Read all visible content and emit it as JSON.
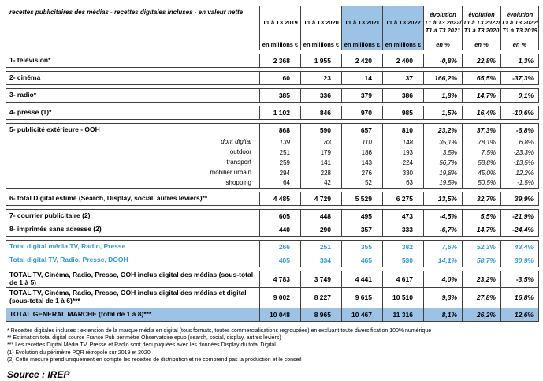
{
  "colors": {
    "highlight_blue": "#9cc3e5",
    "blue_text": "#2e9ad6",
    "border": "#3f3f3f"
  },
  "chart_data": {
    "type": "table",
    "title": "recettes publicitaires des médias - recettes digitales incluses - en valeur nette",
    "column_headers": [
      "T1 à T3 2019",
      "T1 à T3 2020",
      "T1 à T3 2021",
      "T1 à T3 2022",
      "évolution\nT1 à T3 2022/\nT1 à T3 2021",
      "évolution\nT1 à T3 2022/\nT1 à T3 2020",
      "évolution\nT1 à T3 2022/\nT1 à T3 2019"
    ],
    "column_subheaders": [
      "en millions €",
      "en millions €",
      "en millions €",
      "en millions €",
      "en %",
      "en %",
      "en %"
    ],
    "highlighted_columns": [
      2,
      3
    ],
    "sections": [
      {
        "rows": [
          {
            "label": "1- télévision*",
            "type": "main",
            "values": [
              "2 368",
              "1 955",
              "2 420",
              "2 400",
              "-0,8%",
              "22,8%",
              "1,3%"
            ]
          }
        ]
      },
      {
        "rows": [
          {
            "label": "2- cinéma",
            "type": "main",
            "values": [
              "60",
              "23",
              "14",
              "37",
              "166,2%",
              "65,5%",
              "-37,3%"
            ]
          }
        ]
      },
      {
        "rows": [
          {
            "label": "3- radio*",
            "type": "main",
            "values": [
              "385",
              "336",
              "379",
              "386",
              "1,8%",
              "14,7%",
              "0,1%"
            ]
          }
        ]
      },
      {
        "rows": [
          {
            "label": "4- presse (1)*",
            "type": "main",
            "values": [
              "1 102",
              "846",
              "970",
              "985",
              "1,5%",
              "16,4%",
              "-10,6%"
            ]
          }
        ]
      },
      {
        "rows": [
          {
            "label": "5- publicité extérieure - OOH",
            "type": "main",
            "values": [
              "868",
              "590",
              "657",
              "810",
              "23,2%",
              "37,3%",
              "-6,8%"
            ]
          },
          {
            "label": "dont digital",
            "type": "subi",
            "values": [
              "139",
              "83",
              "110",
              "148",
              "35,1%",
              "78,1%",
              "6,8%"
            ]
          },
          {
            "label": "outdoor",
            "type": "sub",
            "values": [
              "251",
              "179",
              "186",
              "193",
              "3,5%",
              "7,5%",
              "-23,3%"
            ]
          },
          {
            "label": "transport",
            "type": "sub",
            "values": [
              "259",
              "141",
              "143",
              "224",
              "56,7%",
              "58,8%",
              "-13,5%"
            ]
          },
          {
            "label": "mobilier urbain",
            "type": "sub",
            "values": [
              "294",
              "228",
              "276",
              "330",
              "19,8%",
              "45,0%",
              "12,2%"
            ]
          },
          {
            "label": "shopping",
            "type": "sub",
            "values": [
              "64",
              "42",
              "52",
              "63",
              "19,5%",
              "50,5%",
              "-1,5%"
            ]
          }
        ]
      },
      {
        "rows": [
          {
            "label": "6- total Digital estimé (Search, Display, social, autres leviers)**",
            "type": "main",
            "values": [
              "4 485",
              "4 729",
              "5 529",
              "6 275",
              "13,5%",
              "32,7%",
              "39,9%"
            ]
          }
        ]
      },
      {
        "rows": [
          {
            "label": "7- courrier publicitaire (2)",
            "type": "main",
            "values": [
              "605",
              "448",
              "495",
              "473",
              "-4,5%",
              "5,5%",
              "-21,9%"
            ]
          },
          {
            "label": "8- imprimés sans adresse (2)",
            "type": "main",
            "values": [
              "440",
              "290",
              "357",
              "333",
              "-6,7%",
              "14,7%",
              "-24,4%"
            ]
          }
        ]
      },
      {
        "rows": [
          {
            "label": "Total digital média TV, Radio, Presse",
            "type": "blue",
            "values": [
              "266",
              "251",
              "355",
              "382",
              "7,6%",
              "52,3%",
              "43,4%"
            ]
          },
          {
            "label": "Total digital TV, Radio, Presse, DOOH",
            "type": "blue",
            "values": [
              "405",
              "334",
              "465",
              "530",
              "14,1%",
              "58,7%",
              "30,9%"
            ]
          }
        ]
      },
      {
        "divided": true,
        "rows": [
          {
            "label": "TOTAL TV, Cinéma, Radio, Presse, OOH inclus digital des médias (sous-total de 1 à 5)",
            "type": "total",
            "values": [
              "4 783",
              "3 749",
              "4 441",
              "4 617",
              "4,0%",
              "23,2%",
              "-3,5%"
            ]
          },
          {
            "label": "TOTAL TV, Cinéma, Radio, Presse, OOH inclus digital des médias et digital\n(sous-total de 1 à 6)***",
            "type": "total2",
            "values": [
              "9 002",
              "8 227",
              "9 615",
              "10 510",
              "9,3%",
              "27,8%",
              "16,8%"
            ]
          },
          {
            "label": "TOTAL GENERAL MARCHE (total de 1 à 8)***",
            "type": "grand",
            "values": [
              "10 048",
              "8 965",
              "10 467",
              "11 316",
              "8,1%",
              "26,2%",
              "12,6%"
            ]
          }
        ]
      }
    ],
    "footnotes": [
      "* Recettes digitales incluses : extension de la marque média en digital (tous formats, toutes commercialisations regroupées) en excluant toute diversification 100% numérique",
      "** Estimation total digital source France Pub périmètre Observatoire epub (search, social, display, autres leviers)",
      "*** Les recettes Digital Média TV, Presse et Radio sont dédupliquées avec les données Display du total Digital",
      "(1) Evolution du périmètre PQR rétropolé sur 2019 et 2020",
      "(2) Cette mesure prend uniquement en compte les recettes de distribution et ne comprend pas la production et le conseil"
    ],
    "source": "Source : IREP"
  }
}
